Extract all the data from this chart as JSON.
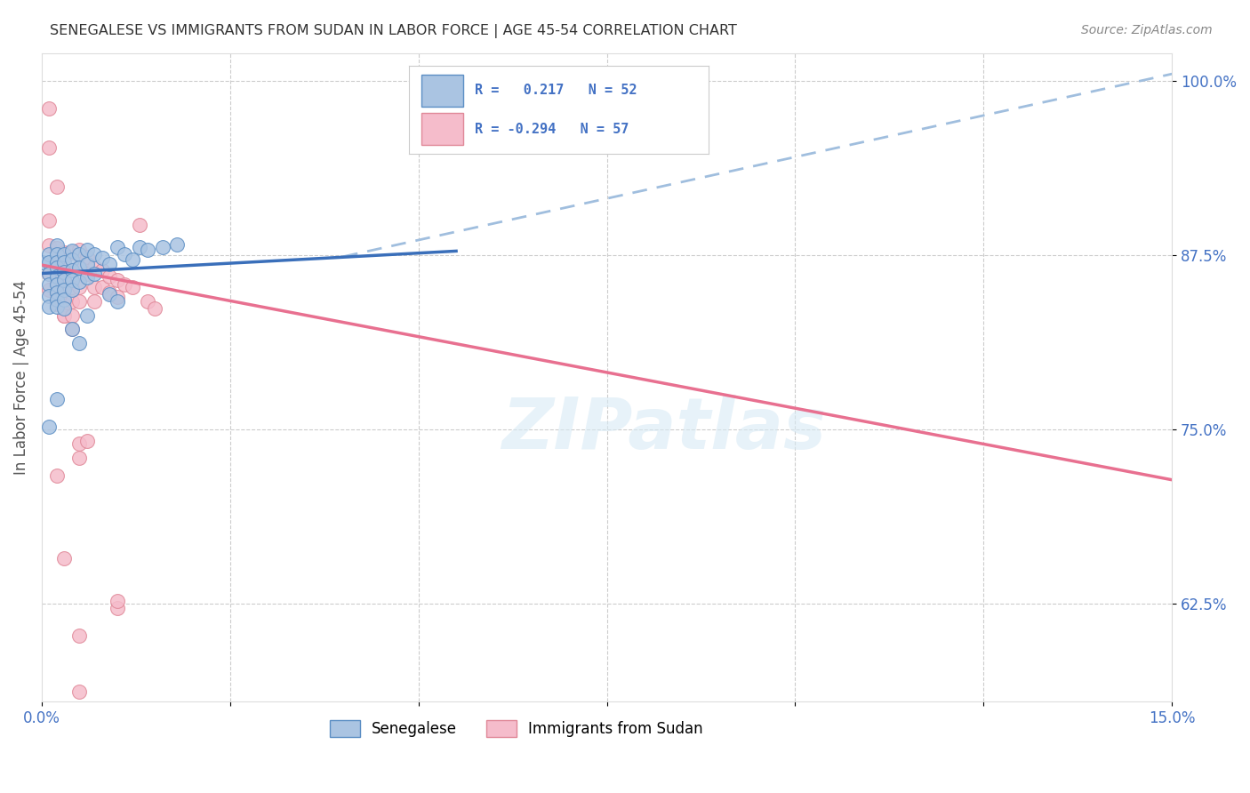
{
  "title": "SENEGALESE VS IMMIGRANTS FROM SUDAN IN LABOR FORCE | AGE 45-54 CORRELATION CHART",
  "source": "Source: ZipAtlas.com",
  "ylabel": "In Labor Force | Age 45-54",
  "ytick_vals": [
    0.625,
    0.75,
    0.875,
    1.0
  ],
  "ytick_labels": [
    "62.5%",
    "75.0%",
    "87.5%",
    "100.0%"
  ],
  "xtick_vals": [
    0.0,
    0.025,
    0.05,
    0.075,
    0.1,
    0.125,
    0.15
  ],
  "xtick_labels": [
    "0.0%",
    "",
    "",
    "",
    "",
    "",
    "15.0%"
  ],
  "color_blue_fill": "#aac4e2",
  "color_blue_edge": "#5b8ec4",
  "color_pink_fill": "#f5bccb",
  "color_pink_edge": "#e08898",
  "line_blue_solid": "#3a6fba",
  "line_blue_dashed": "#a0bede",
  "line_pink": "#e87090",
  "background": "#ffffff",
  "grid_color": "#cccccc",
  "watermark_color": "#d8eaf5",
  "legend_box_color": "#ffffff",
  "legend_border_color": "#cccccc",
  "title_color": "#333333",
  "source_color": "#888888",
  "tick_color": "#4472c4",
  "ylabel_color": "#555555",
  "legend_text_color": "#4472c4",
  "xmin": 0.0,
  "xmax": 0.15,
  "ymin": 0.555,
  "ymax": 1.02,
  "blue_line_x0": 0.0,
  "blue_line_y0": 0.862,
  "blue_line_x1": 0.055,
  "blue_line_y1": 0.878,
  "dash_line_x0": 0.04,
  "dash_line_y0": 0.874,
  "dash_line_x1": 0.15,
  "dash_line_y1": 1.005,
  "pink_line_x0": 0.0,
  "pink_line_y0": 0.868,
  "pink_line_x1": 0.15,
  "pink_line_y1": 0.714,
  "blue_scatter": [
    [
      0.0,
      0.87
    ],
    [
      0.001,
      0.876
    ],
    [
      0.001,
      0.87
    ],
    [
      0.001,
      0.862
    ],
    [
      0.001,
      0.854
    ],
    [
      0.001,
      0.846
    ],
    [
      0.001,
      0.838
    ],
    [
      0.002,
      0.882
    ],
    [
      0.002,
      0.876
    ],
    [
      0.002,
      0.87
    ],
    [
      0.002,
      0.866
    ],
    [
      0.002,
      0.86
    ],
    [
      0.002,
      0.854
    ],
    [
      0.002,
      0.848
    ],
    [
      0.002,
      0.843
    ],
    [
      0.002,
      0.838
    ],
    [
      0.003,
      0.876
    ],
    [
      0.003,
      0.87
    ],
    [
      0.003,
      0.863
    ],
    [
      0.003,
      0.857
    ],
    [
      0.003,
      0.85
    ],
    [
      0.003,
      0.843
    ],
    [
      0.003,
      0.837
    ],
    [
      0.004,
      0.878
    ],
    [
      0.004,
      0.872
    ],
    [
      0.004,
      0.864
    ],
    [
      0.004,
      0.857
    ],
    [
      0.004,
      0.85
    ],
    [
      0.005,
      0.876
    ],
    [
      0.005,
      0.866
    ],
    [
      0.005,
      0.856
    ],
    [
      0.006,
      0.879
    ],
    [
      0.006,
      0.869
    ],
    [
      0.006,
      0.859
    ],
    [
      0.007,
      0.876
    ],
    [
      0.007,
      0.862
    ],
    [
      0.008,
      0.873
    ],
    [
      0.009,
      0.869
    ],
    [
      0.01,
      0.881
    ],
    [
      0.011,
      0.876
    ],
    [
      0.013,
      0.881
    ],
    [
      0.014,
      0.879
    ],
    [
      0.016,
      0.881
    ],
    [
      0.018,
      0.883
    ],
    [
      0.001,
      0.752
    ],
    [
      0.002,
      0.772
    ],
    [
      0.004,
      0.822
    ],
    [
      0.005,
      0.812
    ],
    [
      0.006,
      0.832
    ],
    [
      0.009,
      0.847
    ],
    [
      0.01,
      0.842
    ],
    [
      0.012,
      0.872
    ]
  ],
  "pink_scatter": [
    [
      0.001,
      0.98
    ],
    [
      0.001,
      0.952
    ],
    [
      0.002,
      0.924
    ],
    [
      0.001,
      0.9
    ],
    [
      0.001,
      0.882
    ],
    [
      0.002,
      0.872
    ],
    [
      0.001,
      0.862
    ],
    [
      0.001,
      0.85
    ],
    [
      0.002,
      0.88
    ],
    [
      0.002,
      0.872
    ],
    [
      0.002,
      0.864
    ],
    [
      0.002,
      0.857
    ],
    [
      0.002,
      0.847
    ],
    [
      0.002,
      0.84
    ],
    [
      0.003,
      0.832
    ],
    [
      0.002,
      0.717
    ],
    [
      0.003,
      0.877
    ],
    [
      0.003,
      0.867
    ],
    [
      0.003,
      0.857
    ],
    [
      0.003,
      0.85
    ],
    [
      0.003,
      0.84
    ],
    [
      0.003,
      0.832
    ],
    [
      0.003,
      0.658
    ],
    [
      0.004,
      0.877
    ],
    [
      0.004,
      0.864
    ],
    [
      0.004,
      0.852
    ],
    [
      0.004,
      0.842
    ],
    [
      0.004,
      0.832
    ],
    [
      0.004,
      0.822
    ],
    [
      0.005,
      0.879
    ],
    [
      0.005,
      0.867
    ],
    [
      0.005,
      0.852
    ],
    [
      0.005,
      0.842
    ],
    [
      0.005,
      0.74
    ],
    [
      0.005,
      0.73
    ],
    [
      0.006,
      0.874
    ],
    [
      0.006,
      0.862
    ],
    [
      0.006,
      0.742
    ],
    [
      0.007,
      0.867
    ],
    [
      0.007,
      0.852
    ],
    [
      0.007,
      0.842
    ],
    [
      0.008,
      0.864
    ],
    [
      0.008,
      0.852
    ],
    [
      0.009,
      0.86
    ],
    [
      0.009,
      0.848
    ],
    [
      0.01,
      0.857
    ],
    [
      0.01,
      0.845
    ],
    [
      0.011,
      0.854
    ],
    [
      0.012,
      0.852
    ],
    [
      0.013,
      0.897
    ],
    [
      0.014,
      0.842
    ],
    [
      0.015,
      0.837
    ],
    [
      0.005,
      0.602
    ],
    [
      0.01,
      0.622
    ],
    [
      0.005,
      0.562
    ],
    [
      0.01,
      0.627
    ]
  ]
}
